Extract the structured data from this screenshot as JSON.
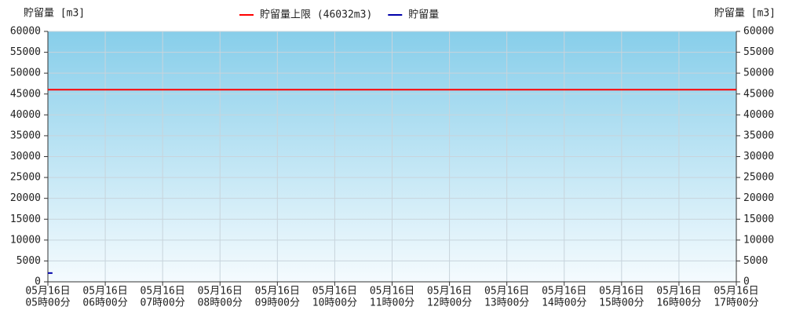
{
  "chart_data": {
    "type": "line",
    "y_label": "貯留量 [m3]",
    "y2_label": "貯留量 [m3]",
    "xlim": [
      5,
      17
    ],
    "xticks": [
      {
        "value": 5,
        "label": [
          "05月16日",
          "05時00分"
        ]
      },
      {
        "value": 6,
        "label": [
          "05月16日",
          "06時00分"
        ]
      },
      {
        "value": 7,
        "label": [
          "05月16日",
          "07時00分"
        ]
      },
      {
        "value": 8,
        "label": [
          "05月16日",
          "08時00分"
        ]
      },
      {
        "value": 9,
        "label": [
          "05月16日",
          "09時00分"
        ]
      },
      {
        "value": 10,
        "label": [
          "05月16日",
          "10時00分"
        ]
      },
      {
        "value": 11,
        "label": [
          "05月16日",
          "11時00分"
        ]
      },
      {
        "value": 12,
        "label": [
          "05月16日",
          "12時00分"
        ]
      },
      {
        "value": 13,
        "label": [
          "05月16日",
          "13時00分"
        ]
      },
      {
        "value": 14,
        "label": [
          "05月16日",
          "14時00分"
        ]
      },
      {
        "value": 15,
        "label": [
          "05月16日",
          "15時00分"
        ]
      },
      {
        "value": 16,
        "label": [
          "05月16日",
          "16時00分"
        ]
      },
      {
        "value": 17,
        "label": [
          "05月16日",
          "17時00分"
        ]
      }
    ],
    "ylim": [
      0,
      60000
    ],
    "yticks": [
      0,
      5000,
      10000,
      15000,
      20000,
      25000,
      30000,
      35000,
      40000,
      45000,
      50000,
      55000,
      60000
    ],
    "y2lim": [
      0,
      60000
    ],
    "y2ticks": [
      0,
      5000,
      10000,
      15000,
      20000,
      25000,
      30000,
      35000,
      40000,
      45000,
      50000,
      55000,
      60000
    ],
    "grid": true,
    "legend": "top",
    "series": [
      {
        "name": "貯留量上限 (46032m3)",
        "color": "#ff0000",
        "x": [
          5,
          17
        ],
        "values": [
          46032,
          46032
        ]
      },
      {
        "name": "貯留量",
        "color": "#0000aa",
        "x": [
          5,
          5.08
        ],
        "values": [
          2100,
          2100
        ]
      }
    ]
  }
}
